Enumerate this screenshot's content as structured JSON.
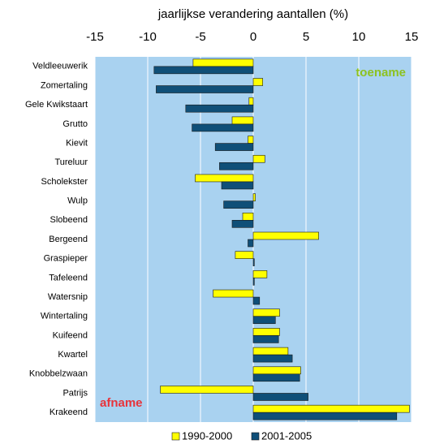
{
  "chart_data": {
    "type": "bar",
    "orientation": "horizontal",
    "title": "jaarlijkse verandering aantallen (%)",
    "categories": [
      "Veldleeuwerik",
      "Zomertaling",
      "Gele Kwikstaart",
      "Grutto",
      "Kievit",
      "Tureluur",
      "Scholekster",
      "Wulp",
      "Slobeend",
      "Bergeend",
      "Graspieper",
      "Tafeleend",
      "Watersnip",
      "Wintertaling",
      "Kuifeend",
      "Kwartel",
      "Knobbelzwaan",
      "Patrijs",
      "Krakeend"
    ],
    "series": [
      {
        "name": "1990-2000",
        "color": "#ffff00",
        "values": [
          -5.7,
          0.9,
          -0.4,
          -2.0,
          -0.5,
          1.1,
          -5.5,
          0.2,
          -1.0,
          6.2,
          -1.7,
          1.3,
          -3.8,
          2.5,
          2.5,
          3.3,
          4.5,
          -8.8,
          14.8
        ]
      },
      {
        "name": "2001-2005",
        "color": "#0f4f78",
        "values": [
          -9.4,
          -9.2,
          -6.4,
          -5.8,
          -3.6,
          -3.2,
          -3.0,
          -2.8,
          -2.0,
          -0.5,
          0.1,
          0.1,
          0.6,
          2.1,
          2.4,
          3.7,
          4.4,
          5.2,
          13.6
        ]
      }
    ],
    "xlim": [
      -15,
      15
    ],
    "xticks": [
      -15,
      -10,
      -5,
      0,
      5,
      10,
      15
    ],
    "grid": true,
    "annotations": [
      {
        "text": "toename",
        "color": "#8dc21f"
      },
      {
        "text": "afname",
        "color": "#e8333a"
      }
    ],
    "legend": "bottom"
  }
}
